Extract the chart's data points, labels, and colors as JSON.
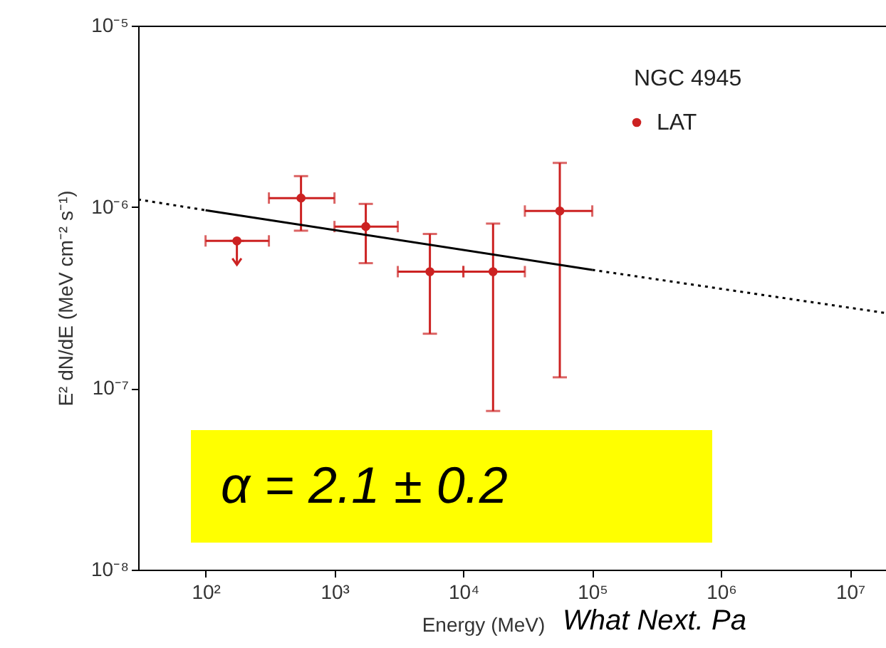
{
  "chart_data": {
    "type": "scatter",
    "title": "NGC 4945",
    "xlabel": "Energy (MeV)",
    "ylabel": "E² dN/dE (MeV cm⁻² s⁻¹)",
    "log": "xy",
    "grid": false,
    "legend": "top right",
    "xlim": [
      30,
      19000000
    ],
    "ylim": [
      1e-08,
      1e-05
    ],
    "xticks": [
      {
        "value": 100,
        "label": "10²"
      },
      {
        "value": 1000,
        "label": "10³"
      },
      {
        "value": 10000,
        "label": "10⁴"
      },
      {
        "value": 100000,
        "label": "10⁵"
      },
      {
        "value": 1000000,
        "label": "10⁶"
      },
      {
        "value": 10000000,
        "label": "10⁷"
      }
    ],
    "yticks": [
      {
        "value": 1e-08,
        "label": "10⁻⁸"
      },
      {
        "value": 1e-07,
        "label": "10⁻⁷"
      },
      {
        "value": 1e-06,
        "label": "10⁻⁶"
      },
      {
        "value": 1e-05,
        "label": "10⁻⁵"
      }
    ],
    "series": [
      {
        "name": "LAT",
        "color": "#cc2222",
        "marker": "circle",
        "x": [
          175,
          550,
          1750,
          5500,
          17000,
          56000
        ],
        "values": [
          6.5e-07,
          1.12e-06,
          7.8e-07,
          4.4e-07,
          4.4e-07,
          9.5e-07
        ],
        "errors": [
          [
            4.8e-07,
            6.5e-07
          ],
          [
            7.4e-07,
            1.48e-06
          ],
          [
            4.9e-07,
            1.04e-06
          ],
          [
            2e-07,
            7.1e-07
          ],
          [
            7.5e-08,
            8.1e-07
          ],
          [
            1.15e-07,
            1.75e-06
          ]
        ],
        "xerrors": [
          [
            100,
            310
          ],
          [
            310,
            1000
          ],
          [
            1000,
            3100
          ],
          [
            3100,
            10000
          ],
          [
            10000,
            30000
          ],
          [
            30000,
            100000
          ]
        ]
      },
      {
        "type": "line",
        "color": "#000000",
        "line_style": "solid",
        "marker": "none",
        "x": [
          100,
          100000
        ],
        "values": [
          9.6e-07,
          4.5e-07
        ]
      },
      {
        "type": "line",
        "color": "#000000",
        "line_style": "dotted",
        "marker": "none",
        "x": [
          30,
          100,
          1000,
          100000,
          19000000
        ],
        "values": [
          1.1e-06,
          9.6e-07,
          null,
          4.5e-07,
          2.6e-07
        ]
      }
    ],
    "annotations": [
      "α =  2.1 ± 0.2",
      "What Next. Pa"
    ]
  }
}
